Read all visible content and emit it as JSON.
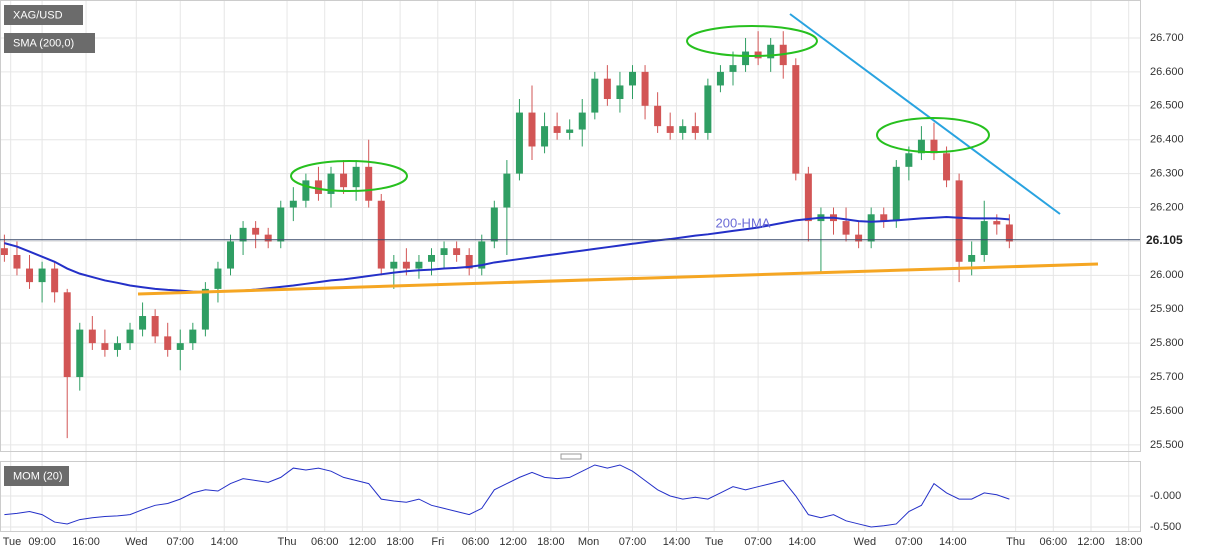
{
  "chart_data": [
    {
      "type": "candlestick",
      "title": "XAG/USD",
      "x": [
        3,
        5,
        7,
        9,
        11,
        13,
        15,
        17,
        19,
        21,
        23,
        25,
        27,
        29,
        31,
        33,
        35,
        37,
        39,
        41,
        43,
        45,
        47,
        49,
        51,
        53,
        55,
        57,
        59,
        61,
        63,
        65,
        67,
        69,
        71,
        73,
        75,
        77,
        79,
        81,
        83,
        85,
        87,
        89,
        91,
        93,
        95,
        97,
        99,
        101,
        103,
        105,
        107,
        109,
        111,
        113,
        115,
        117,
        119,
        121,
        123,
        125,
        127,
        129,
        131,
        133,
        135,
        137,
        139,
        141,
        143,
        145,
        147,
        149,
        151,
        153,
        155,
        157,
        159,
        161,
        163
      ],
      "open": [
        26.08,
        26.06,
        26.02,
        25.98,
        26.02,
        25.95,
        25.7,
        25.84,
        25.8,
        25.78,
        25.8,
        25.84,
        25.88,
        25.82,
        25.78,
        25.8,
        25.84,
        25.96,
        26.02,
        26.1,
        26.14,
        26.12,
        26.1,
        26.2,
        26.22,
        26.28,
        26.24,
        26.3,
        26.26,
        26.32,
        26.22,
        26.02,
        26.04,
        26.02,
        26.04,
        26.06,
        26.08,
        26.06,
        26.02,
        26.1,
        26.2,
        26.3,
        26.48,
        26.38,
        26.44,
        26.42,
        26.43,
        26.48,
        26.58,
        26.52,
        26.56,
        26.6,
        26.5,
        26.44,
        26.42,
        26.44,
        26.42,
        26.56,
        26.6,
        26.62,
        26.66,
        26.64,
        26.68,
        26.62,
        26.3,
        26.16,
        26.18,
        26.16,
        26.12,
        26.1,
        26.18,
        26.16,
        26.32,
        26.36,
        26.4,
        26.36,
        26.28,
        26.04,
        26.06,
        26.16,
        26.15
      ],
      "high": [
        26.12,
        26.1,
        26.06,
        26.04,
        26.04,
        25.96,
        25.86,
        25.88,
        25.84,
        25.82,
        25.86,
        25.92,
        25.9,
        25.86,
        25.84,
        25.86,
        25.98,
        26.04,
        26.12,
        26.16,
        26.16,
        26.14,
        26.22,
        26.26,
        26.3,
        26.32,
        26.32,
        26.34,
        26.34,
        26.4,
        26.24,
        26.06,
        26.08,
        26.06,
        26.08,
        26.1,
        26.1,
        26.08,
        26.12,
        26.22,
        26.34,
        26.52,
        26.56,
        26.48,
        26.48,
        26.46,
        26.52,
        26.6,
        26.62,
        26.6,
        26.62,
        26.62,
        26.54,
        26.48,
        26.46,
        26.48,
        26.58,
        26.62,
        26.66,
        26.7,
        26.72,
        26.7,
        26.72,
        26.64,
        26.32,
        26.2,
        26.2,
        26.2,
        26.16,
        26.2,
        26.2,
        26.34,
        26.38,
        26.44,
        26.45,
        26.38,
        26.3,
        26.1,
        26.22,
        26.18,
        26.18
      ],
      "low": [
        26.04,
        26.0,
        25.96,
        25.92,
        25.92,
        25.52,
        25.66,
        25.78,
        25.76,
        25.76,
        25.78,
        25.82,
        25.8,
        25.76,
        25.72,
        25.78,
        25.82,
        25.92,
        26.0,
        26.06,
        26.08,
        26.08,
        26.08,
        26.16,
        26.2,
        26.22,
        26.2,
        26.24,
        26.22,
        26.2,
        26.0,
        25.96,
        26.0,
        25.99,
        26.0,
        26.02,
        26.04,
        26.0,
        26.0,
        26.08,
        26.06,
        26.28,
        26.34,
        26.36,
        26.4,
        26.4,
        26.38,
        26.46,
        26.5,
        26.48,
        26.52,
        26.46,
        26.42,
        26.4,
        26.4,
        26.4,
        26.4,
        26.54,
        26.56,
        26.6,
        26.62,
        26.6,
        26.58,
        26.28,
        26.1,
        26.01,
        26.12,
        26.1,
        26.08,
        26.08,
        26.14,
        26.14,
        26.28,
        26.34,
        26.34,
        26.26,
        25.98,
        26.0,
        26.04,
        26.12,
        26.08
      ],
      "close": [
        26.06,
        26.02,
        25.98,
        26.02,
        25.95,
        25.7,
        25.84,
        25.8,
        25.78,
        25.8,
        25.84,
        25.88,
        25.82,
        25.78,
        25.8,
        25.84,
        25.96,
        26.02,
        26.1,
        26.14,
        26.12,
        26.1,
        26.2,
        26.22,
        26.28,
        26.24,
        26.3,
        26.26,
        26.32,
        26.22,
        26.02,
        26.04,
        26.02,
        26.04,
        26.06,
        26.08,
        26.06,
        26.02,
        26.1,
        26.2,
        26.3,
        26.48,
        26.38,
        26.44,
        26.42,
        26.43,
        26.48,
        26.58,
        26.52,
        26.56,
        26.6,
        26.5,
        26.44,
        26.42,
        26.44,
        26.42,
        26.56,
        26.6,
        26.62,
        26.66,
        26.64,
        26.68,
        26.62,
        26.3,
        26.16,
        26.18,
        26.16,
        26.12,
        26.1,
        26.18,
        26.16,
        26.32,
        26.36,
        26.4,
        26.36,
        26.28,
        26.04,
        26.06,
        26.16,
        26.15,
        26.1
      ],
      "up_color": "#2f9e63",
      "down_color": "#d25555",
      "series": [
        {
          "name": "SMA (200,0)",
          "color": "#2430c8",
          "values": [
            26.095,
            26.085,
            26.07,
            26.055,
            26.04,
            26.02,
            26.005,
            25.995,
            25.985,
            25.978,
            25.97,
            25.965,
            25.96,
            25.957,
            25.955,
            25.952,
            25.95,
            25.952,
            25.953,
            25.955,
            25.958,
            25.962,
            25.966,
            25.97,
            25.975,
            25.98,
            25.985,
            25.988,
            25.993,
            25.998,
            26.003,
            26.008,
            26.012,
            26.015,
            26.017,
            26.02,
            26.022,
            26.025,
            26.03,
            26.038,
            26.043,
            26.048,
            26.053,
            26.058,
            26.063,
            26.068,
            26.073,
            26.078,
            26.083,
            26.088,
            26.093,
            26.098,
            26.103,
            26.107,
            26.112,
            26.117,
            26.121,
            26.126,
            26.131,
            26.136,
            26.141,
            26.148,
            26.155,
            26.162,
            26.166,
            26.17,
            26.17,
            26.165,
            26.16,
            26.158,
            26.16,
            26.162,
            26.165,
            26.168,
            26.17,
            26.172,
            26.17,
            26.168,
            26.168,
            26.168,
            26.165
          ]
        }
      ],
      "annotation": "200-HMA",
      "last": {
        "value": 26.105,
        "label": "26.105"
      },
      "xlim": [
        2.3,
        183.8
      ],
      "ylim": [
        25.479,
        26.812
      ],
      "xticks": [
        {
          "value": 4,
          "label": "Tue"
        },
        {
          "value": 9,
          "label": "09:00"
        },
        {
          "value": 16,
          "label": "16:00"
        },
        {
          "value": 24,
          "label": "Wed"
        },
        {
          "value": 31,
          "label": "07:00"
        },
        {
          "value": 38,
          "label": "14:00"
        },
        {
          "value": 48,
          "label": "Thu"
        },
        {
          "value": 54,
          "label": "06:00"
        },
        {
          "value": 60,
          "label": "12:00"
        },
        {
          "value": 66,
          "label": "18:00"
        },
        {
          "value": 72,
          "label": "Fri"
        },
        {
          "value": 78,
          "label": "06:00"
        },
        {
          "value": 84,
          "label": "12:00"
        },
        {
          "value": 90,
          "label": "18:00"
        },
        {
          "value": 96,
          "label": "Mon"
        },
        {
          "value": 103,
          "label": "07:00"
        },
        {
          "value": 110,
          "label": "14:00"
        },
        {
          "value": 116,
          "label": "Tue"
        },
        {
          "value": 123,
          "label": "07:00"
        },
        {
          "value": 130,
          "label": "14:00"
        },
        {
          "value": 140,
          "label": "Wed"
        },
        {
          "value": 147,
          "label": "07:00"
        },
        {
          "value": 154,
          "label": "14:00"
        },
        {
          "value": 164,
          "label": "Thu"
        },
        {
          "value": 170,
          "label": "06:00"
        },
        {
          "value": 176,
          "label": "12:00"
        },
        {
          "value": 182,
          "label": "18:00"
        }
      ],
      "yticks": [
        {
          "value": 25.5,
          "label": "25.500"
        },
        {
          "value": 25.6,
          "label": "25.600"
        },
        {
          "value": 25.7,
          "label": "25.700"
        },
        {
          "value": 25.8,
          "label": "25.800"
        },
        {
          "value": 25.9,
          "label": "25.900"
        },
        {
          "value": 26.0,
          "label": "26.000"
        },
        {
          "value": 26.1,
          "label": "26.100"
        },
        {
          "value": 26.2,
          "label": "26.200"
        },
        {
          "value": 26.3,
          "label": "26.300"
        },
        {
          "value": 26.4,
          "label": "26.400"
        },
        {
          "value": 26.5,
          "label": "26.500"
        },
        {
          "value": 26.6,
          "label": "26.600"
        },
        {
          "value": 26.7,
          "label": "26.700"
        }
      ],
      "grid": true
    },
    {
      "type": "line",
      "title": "MOM (20)",
      "color": "#2430c8",
      "x": [
        3,
        5,
        7,
        9,
        11,
        13,
        15,
        17,
        19,
        21,
        23,
        25,
        27,
        29,
        31,
        33,
        35,
        37,
        39,
        41,
        43,
        45,
        47,
        49,
        51,
        53,
        55,
        57,
        59,
        61,
        63,
        65,
        67,
        69,
        71,
        73,
        75,
        77,
        79,
        81,
        83,
        85,
        87,
        89,
        91,
        93,
        95,
        97,
        99,
        101,
        103,
        105,
        107,
        109,
        111,
        113,
        115,
        117,
        119,
        121,
        123,
        125,
        127,
        129,
        131,
        133,
        135,
        137,
        139,
        141,
        143,
        145,
        147,
        149,
        151,
        153,
        155,
        157,
        159,
        161,
        163
      ],
      "values": [
        -0.3,
        -0.28,
        -0.25,
        -0.3,
        -0.42,
        -0.45,
        -0.38,
        -0.35,
        -0.33,
        -0.32,
        -0.3,
        -0.22,
        -0.15,
        -0.12,
        -0.05,
        0.05,
        0.1,
        0.08,
        0.2,
        0.28,
        0.25,
        0.22,
        0.3,
        0.45,
        0.42,
        0.45,
        0.4,
        0.3,
        0.25,
        0.2,
        -0.05,
        -0.08,
        -0.1,
        -0.05,
        -0.15,
        -0.2,
        -0.25,
        -0.3,
        -0.2,
        0.1,
        0.2,
        0.3,
        0.38,
        0.3,
        0.28,
        0.3,
        0.4,
        0.5,
        0.45,
        0.5,
        0.4,
        0.25,
        0.1,
        0.0,
        -0.05,
        -0.02,
        -0.05,
        0.05,
        0.15,
        0.1,
        0.15,
        0.2,
        0.25,
        0.0,
        -0.3,
        -0.35,
        -0.3,
        -0.4,
        -0.45,
        -0.5,
        -0.48,
        -0.45,
        -0.25,
        -0.15,
        0.2,
        0.05,
        -0.05,
        -0.05,
        0.05,
        0.02,
        -0.05
      ],
      "xlim": [
        2.3,
        183.8
      ],
      "ylim": [
        -0.58,
        0.548
      ],
      "yticks": [
        {
          "value": 0,
          "label": "-0.000"
        },
        {
          "value": -0.5,
          "label": "-0.500"
        }
      ]
    }
  ]
}
